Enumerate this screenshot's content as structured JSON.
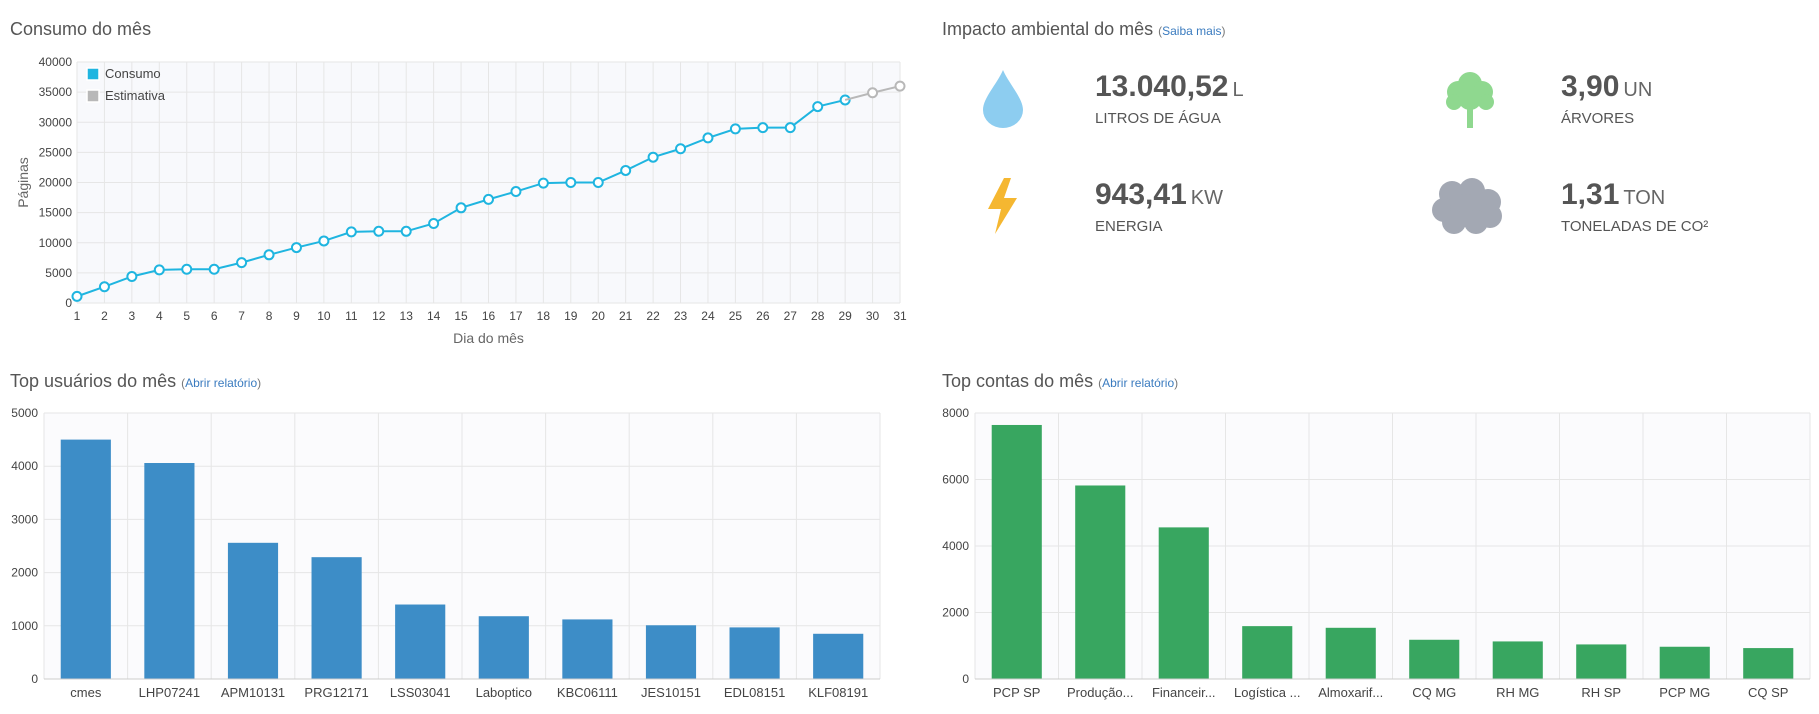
{
  "consumo": {
    "title": "Consumo do mês",
    "chart_data": {
      "type": "line",
      "xlabel": "Dia do mês",
      "ylabel": "Páginas",
      "ylim": [
        0,
        40000
      ],
      "yticks": [
        0,
        5000,
        10000,
        15000,
        20000,
        25000,
        30000,
        35000,
        40000
      ],
      "x": [
        1,
        2,
        3,
        4,
        5,
        6,
        7,
        8,
        9,
        10,
        11,
        12,
        13,
        14,
        15,
        16,
        17,
        18,
        19,
        20,
        21,
        22,
        23,
        24,
        25,
        26,
        27,
        28,
        29,
        30,
        31
      ],
      "legend_position": "top-left",
      "series": [
        {
          "name": "Consumo",
          "color": "#1fb5e0",
          "x": [
            1,
            2,
            3,
            4,
            5,
            6,
            7,
            8,
            9,
            10,
            11,
            12,
            13,
            14,
            15,
            16,
            17,
            18,
            19,
            20,
            21,
            22,
            23,
            24,
            25,
            26,
            27,
            28,
            29
          ],
          "values": [
            1100,
            2700,
            4400,
            5500,
            5600,
            5600,
            6700,
            8000,
            9200,
            10300,
            11800,
            11900,
            11900,
            13200,
            15800,
            17200,
            18500,
            19900,
            20000,
            20000,
            22000,
            24200,
            25600,
            27400,
            28900,
            29100,
            29100,
            32600,
            33700
          ]
        },
        {
          "name": "Estimativa",
          "color": "#b8b8b8",
          "x": [
            29,
            30,
            31
          ],
          "values": [
            33700,
            34900,
            36000
          ]
        }
      ]
    }
  },
  "impacto": {
    "title": "Impacto ambiental do mês",
    "link_open": "(",
    "link_label": "Saiba mais",
    "link_close": ")",
    "items": [
      {
        "value": "13.040,52",
        "unit": "L",
        "label": "LITROS DE ÁGUA",
        "icon": "water-drop-icon",
        "color": "#8dcdf0"
      },
      {
        "value": "3,90",
        "unit": "UN",
        "label": "ÁRVORES",
        "icon": "tree-icon",
        "color": "#8fd88f"
      },
      {
        "value": "943,41",
        "unit": "KW",
        "label": "ENERGIA",
        "icon": "lightning-icon",
        "color": "#f5b731"
      },
      {
        "value": "1,31",
        "unit": "TON",
        "label": "TONELADAS DE CO²",
        "icon": "cloud-icon",
        "color": "#a3a8b3"
      }
    ]
  },
  "usuarios": {
    "title": "Top usuários do mês",
    "link_open": "(",
    "link_label": "Abrir relatório",
    "link_close": ")",
    "chart_data": {
      "type": "bar",
      "ylim": [
        0,
        5000
      ],
      "yticks": [
        0,
        1000,
        2000,
        3000,
        4000,
        5000
      ],
      "color": "#3d8dc7",
      "categories": [
        "cmes",
        "LHP07241",
        "APM10131",
        "PRG12171",
        "LSS03041",
        "Laboptico",
        "KBC06111",
        "JES10151",
        "EDL08151",
        "KLF08191"
      ],
      "values": [
        4500,
        4060,
        2560,
        2290,
        1400,
        1180,
        1120,
        1010,
        970,
        850
      ]
    }
  },
  "contas": {
    "title": "Top contas do mês",
    "link_open": "(",
    "link_label": "Abrir relatório",
    "link_close": ")",
    "chart_data": {
      "type": "bar",
      "ylim": [
        0,
        8000
      ],
      "yticks": [
        0,
        2000,
        4000,
        6000,
        8000
      ],
      "color": "#38a660",
      "categories": [
        "PCP SP",
        "Produção...",
        "Financeir...",
        "Logística ...",
        "Almoxarif...",
        "CQ MG",
        "RH MG",
        "RH SP",
        "PCP MG",
        "CQ SP"
      ],
      "values": [
        7640,
        5820,
        4560,
        1590,
        1540,
        1180,
        1130,
        1040,
        970,
        930
      ]
    }
  }
}
